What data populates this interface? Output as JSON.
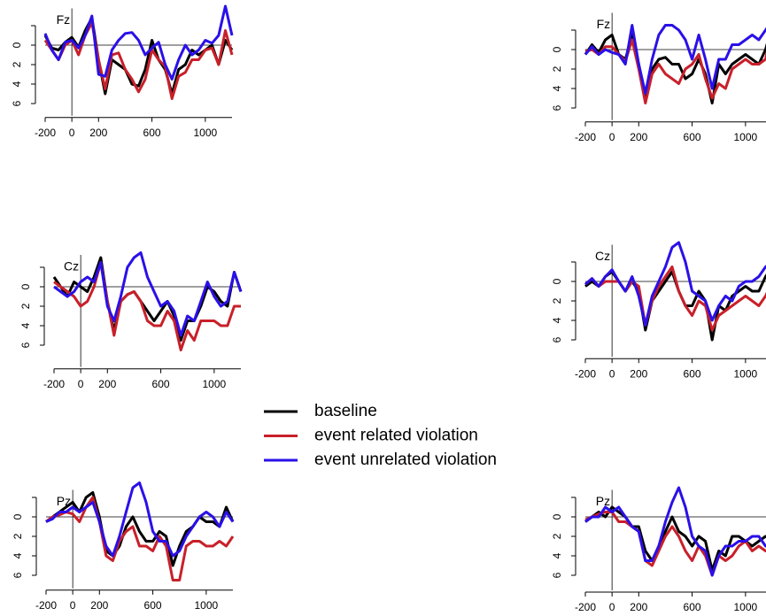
{
  "chart_data": [
    {
      "type": "line",
      "label": "Fz",
      "x": [
        -200,
        -150,
        -100,
        -50,
        0,
        50,
        100,
        150,
        200,
        250,
        300,
        350,
        400,
        450,
        500,
        550,
        600,
        650,
        700,
        750,
        800,
        850,
        900,
        950,
        1000,
        1050,
        1100,
        1150,
        1200
      ],
      "xlim": [
        -200,
        1200
      ],
      "xticks": [
        -200,
        0,
        200,
        600,
        1000
      ],
      "ylim": [
        6.7,
        -4.5
      ],
      "yticks": [
        0,
        2,
        4,
        6
      ],
      "series": [
        {
          "name": "baseline",
          "color": "#000000",
          "values": [
            -1,
            0.3,
            0.5,
            -0.3,
            -0.8,
            0.2,
            -1.5,
            -2.8,
            1.5,
            5,
            1.5,
            2,
            2.5,
            4,
            4.2,
            2.5,
            -0.5,
            1.5,
            2.5,
            5,
            2.5,
            2,
            0.5,
            1,
            0.5,
            0,
            2,
            -0.5,
            0.5
          ]
        },
        {
          "name": "event related violation",
          "color": "#c8202a",
          "values": [
            -0.5,
            0.5,
            1.5,
            0,
            -0.5,
            1,
            -1,
            -2.3,
            1.5,
            4.5,
            1,
            0.8,
            2.5,
            3.5,
            4.8,
            3.5,
            0.5,
            1.5,
            2.2,
            5.5,
            3.2,
            2.8,
            1.5,
            1.5,
            0.5,
            0.3,
            2,
            -1.5,
            1
          ]
        },
        {
          "name": "event unrelated violation",
          "color": "#2a10e8",
          "values": [
            -1.2,
            0.5,
            1.5,
            -0.3,
            -0.5,
            0.3,
            -1,
            -3,
            3,
            3.2,
            0.5,
            -0.5,
            -1.2,
            -1.3,
            -0.5,
            1,
            0.3,
            -0.3,
            2,
            3.5,
            1.5,
            0,
            1,
            0.5,
            -0.5,
            -0.2,
            -1,
            -4,
            -1
          ]
        }
      ]
    },
    {
      "type": "line",
      "label": "Fz",
      "x": [
        -200,
        -150,
        -100,
        -50,
        0,
        50,
        100,
        150,
        200,
        250,
        300,
        350,
        400,
        450,
        500,
        550,
        600,
        650,
        700,
        750,
        800,
        850,
        900,
        950,
        1000,
        1050,
        1100,
        1150,
        1200
      ],
      "xlim": [
        -200,
        1200
      ],
      "xticks": [
        -200,
        0,
        200,
        600,
        1000
      ],
      "ylim": [
        6.7,
        -4.5
      ],
      "yticks": [
        0,
        2,
        4,
        6
      ],
      "series": [
        {
          "color": "#000000",
          "values": [
            0.5,
            -0.5,
            0.3,
            -1,
            -1.5,
            0.5,
            1,
            -1.5,
            1.5,
            5,
            2,
            1,
            0.8,
            1.5,
            1.5,
            3,
            2.5,
            1,
            2.5,
            5.5,
            1.5,
            2.5,
            1.5,
            1,
            0.5,
            1,
            1.5,
            0,
            -2.5
          ]
        },
        {
          "color": "#c8202a",
          "values": [
            0.2,
            0,
            0.5,
            -0.3,
            -0.3,
            0.5,
            1.2,
            -1,
            2,
            5.5,
            2.5,
            1.5,
            2.5,
            3,
            3.5,
            2,
            1.5,
            0.5,
            3,
            5,
            3.5,
            4,
            2,
            1.5,
            1,
            1.5,
            1.5,
            1,
            -2.5
          ]
        },
        {
          "color": "#2a10e8",
          "values": [
            0.5,
            -0.3,
            0.5,
            0,
            0.3,
            0.5,
            1.5,
            -2.5,
            1.5,
            4.5,
            1,
            -1.5,
            -2.5,
            -2.5,
            -2,
            -1,
            1,
            -1.5,
            1,
            4,
            1,
            1,
            -0.5,
            -0.5,
            -1,
            -1.5,
            -1,
            -2,
            -3
          ]
        }
      ]
    },
    {
      "type": "line",
      "label": "Cz",
      "x": [
        -200,
        -150,
        -100,
        -50,
        0,
        50,
        100,
        150,
        200,
        250,
        300,
        350,
        400,
        450,
        500,
        550,
        600,
        650,
        700,
        750,
        800,
        850,
        900,
        950,
        1000,
        1050,
        1100,
        1150,
        1200
      ],
      "xlim": [
        -200,
        1200
      ],
      "xticks": [
        -200,
        0,
        200,
        600,
        1000
      ],
      "ylim": [
        7.7,
        -4
      ],
      "yticks": [
        0,
        2,
        4,
        6
      ],
      "series": [
        {
          "color": "#000000",
          "values": [
            -1,
            0,
            1,
            -0.5,
            0,
            0.5,
            -1,
            -3,
            1.5,
            4.5,
            1.5,
            0.8,
            0.5,
            1.5,
            2.5,
            3.5,
            2.5,
            1.5,
            3,
            5.5,
            3.5,
            3.5,
            2,
            0,
            0.5,
            1.5,
            2,
            -1.5,
            0.5
          ]
        },
        {
          "color": "#c8202a",
          "values": [
            -0.5,
            0,
            0.5,
            1,
            2,
            1.5,
            0,
            -2.5,
            1.5,
            5,
            1.5,
            0.8,
            0.5,
            1.5,
            3.5,
            4,
            4,
            2.5,
            3.5,
            6.5,
            4.5,
            5.5,
            3.5,
            3.5,
            3.5,
            4,
            4,
            2,
            2
          ]
        },
        {
          "color": "#2a10e8",
          "values": [
            0,
            0.5,
            1,
            0.5,
            -0.5,
            -1,
            -0.5,
            -2.5,
            2,
            3.5,
            1,
            -2,
            -3,
            -3.5,
            -1,
            0.5,
            2,
            1.5,
            2.5,
            5,
            3,
            3.5,
            1.5,
            -0.5,
            1,
            2,
            1.5,
            -1.5,
            0.5
          ]
        }
      ]
    },
    {
      "type": "line",
      "label": "Cz",
      "x": [
        -200,
        -150,
        -100,
        -50,
        0,
        50,
        100,
        150,
        200,
        250,
        300,
        350,
        400,
        450,
        500,
        550,
        600,
        650,
        700,
        750,
        800,
        850,
        900,
        950,
        1000,
        1050,
        1100,
        1150,
        1200
      ],
      "xlim": [
        -200,
        1200
      ],
      "xticks": [
        -200,
        0,
        200,
        600,
        1000
      ],
      "ylim": [
        7.2,
        -4.5
      ],
      "yticks": [
        0,
        2,
        4,
        6
      ],
      "series": [
        {
          "color": "#000000",
          "values": [
            0.5,
            0,
            0.5,
            -0.5,
            -1,
            0,
            1,
            0,
            1,
            5,
            2,
            1,
            0,
            -1,
            1,
            2.5,
            2.5,
            1,
            2,
            6,
            2.5,
            3,
            1.5,
            1,
            0.5,
            1,
            1,
            -0.5,
            -1.5
          ]
        },
        {
          "color": "#c8202a",
          "values": [
            0.3,
            -0.3,
            0.5,
            0,
            0,
            0,
            1,
            0,
            0.5,
            4.5,
            2,
            0.5,
            -0.5,
            -1.5,
            1,
            2.5,
            3.5,
            2,
            2.5,
            5,
            3.5,
            3,
            2.5,
            2,
            1.5,
            2,
            2.5,
            1.5,
            0
          ]
        },
        {
          "color": "#2a10e8",
          "values": [
            0.3,
            -0.3,
            0.5,
            -0.5,
            -1.2,
            0,
            1,
            -0.5,
            1.5,
            4.5,
            1.5,
            0,
            -1.5,
            -3.5,
            -4,
            -2,
            1,
            1.5,
            2,
            4,
            2.5,
            1.5,
            2,
            0.5,
            0,
            0,
            -0.5,
            -1.5,
            -2
          ]
        }
      ]
    },
    {
      "type": "line",
      "label": "Pz",
      "x": [
        -200,
        -150,
        -100,
        -50,
        0,
        50,
        100,
        150,
        200,
        250,
        300,
        350,
        400,
        450,
        500,
        550,
        600,
        650,
        700,
        750,
        800,
        850,
        900,
        950,
        1000,
        1050,
        1100,
        1150,
        1200
      ],
      "xlim": [
        -200,
        1200
      ],
      "xticks": [
        -200,
        0,
        200,
        600,
        1000
      ],
      "ylim": [
        6.8,
        -3.5
      ],
      "yticks": [
        0,
        2,
        4,
        6
      ],
      "series": [
        {
          "color": "#000000",
          "values": [
            0.5,
            0,
            -0.5,
            -1,
            -1.5,
            -0.5,
            -2,
            -2.5,
            0,
            3.5,
            4,
            3,
            1,
            0,
            1.5,
            2.5,
            2.5,
            1.5,
            2,
            5,
            3,
            1.5,
            1,
            0,
            0.5,
            0.5,
            1,
            -1,
            0.5
          ]
        },
        {
          "color": "#c8202a",
          "values": [
            0.5,
            0,
            -0.2,
            -0.5,
            -0.3,
            0.5,
            -1,
            -2,
            0.5,
            4,
            4.5,
            2.5,
            1.5,
            1,
            3,
            3,
            3.5,
            2,
            3,
            6.5,
            6.5,
            3,
            2.5,
            2.5,
            3,
            3,
            2.5,
            3,
            2
          ]
        },
        {
          "color": "#2a10e8",
          "values": [
            0.5,
            0.2,
            -0.5,
            -0.5,
            -1,
            -0.5,
            -1,
            -1.5,
            0.5,
            3,
            4,
            2,
            -0.5,
            -3,
            -3.5,
            -1.5,
            1.5,
            2.5,
            2.5,
            4,
            3.5,
            2,
            1,
            0,
            -0.5,
            0,
            1,
            -0.5,
            0.5
          ]
        }
      ]
    },
    {
      "type": "line",
      "label": "Pz",
      "x": [
        -200,
        -150,
        -100,
        -50,
        0,
        50,
        100,
        150,
        200,
        250,
        300,
        350,
        400,
        450,
        500,
        550,
        600,
        650,
        700,
        750,
        800,
        850,
        900,
        950,
        1000,
        1050,
        1100,
        1150,
        1200
      ],
      "xlim": [
        -200,
        1200
      ],
      "xticks": [
        -200,
        0,
        200,
        600,
        1000
      ],
      "ylim": [
        7,
        -3.5
      ],
      "yticks": [
        0,
        2,
        4,
        6
      ],
      "series": [
        {
          "color": "#000000",
          "values": [
            0.5,
            0,
            -0.5,
            0,
            -1,
            -0.5,
            0,
            1,
            1,
            3.5,
            4.5,
            3,
            1.5,
            0,
            1.5,
            2,
            3,
            2,
            2.5,
            5.5,
            3.5,
            4,
            2,
            2,
            2.5,
            3,
            2.5,
            2,
            2.5
          ]
        },
        {
          "color": "#c8202a",
          "values": [
            0.3,
            0,
            -0.3,
            -0.5,
            -0.5,
            0.5,
            0.5,
            1,
            1.5,
            4.5,
            5,
            3.5,
            2,
            1,
            2,
            3.5,
            4.5,
            3,
            4,
            6,
            4,
            4.5,
            4,
            3,
            2.5,
            3.5,
            3,
            3.5,
            3.5
          ]
        },
        {
          "color": "#2a10e8",
          "values": [
            0.5,
            0,
            0,
            -1,
            -0.5,
            -1,
            0,
            1,
            1.5,
            4.5,
            4.5,
            3,
            0.5,
            -1.5,
            -3,
            -1,
            2,
            3,
            3.5,
            6,
            4,
            3,
            3,
            2.5,
            2.5,
            2,
            2,
            3,
            2.5
          ]
        }
      ]
    }
  ]
}
